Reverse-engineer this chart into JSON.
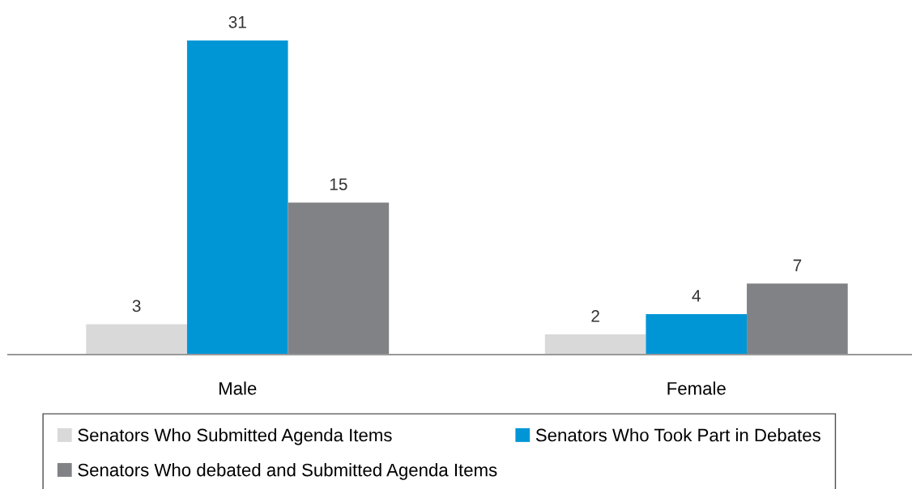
{
  "chart_data": {
    "type": "bar",
    "categories": [
      "Male",
      "Female"
    ],
    "series": [
      {
        "name": "Senators Who Submitted Agenda Items",
        "color": "#d9d9d9",
        "values": [
          3,
          2
        ]
      },
      {
        "name": "Senators Who Took Part in Debates",
        "color": "#0096d6",
        "values": [
          31,
          4
        ]
      },
      {
        "name": "Senators Who debated and Submitted Agenda Items",
        "color": "#818285",
        "values": [
          15,
          7
        ]
      }
    ],
    "data_labels": true,
    "grid": false,
    "legend": "bottom"
  }
}
